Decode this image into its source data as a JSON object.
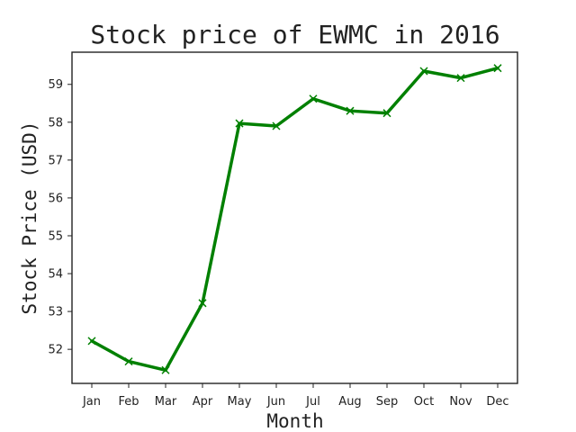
{
  "chart_data": {
    "type": "line",
    "title": "Stock price of EWMC in 2016",
    "xlabel": "Month",
    "ylabel": "Stock Price (USD)",
    "categories": [
      "Jan",
      "Feb",
      "Mar",
      "Apr",
      "May",
      "Jun",
      "Jul",
      "Aug",
      "Sep",
      "Oct",
      "Nov",
      "Dec"
    ],
    "series": [
      {
        "values": [
          52.22,
          51.68,
          51.45,
          53.22,
          57.97,
          57.9,
          58.62,
          58.3,
          58.24,
          59.35,
          59.17,
          59.43
        ]
      }
    ],
    "ylim": [
      51.1,
      59.85
    ],
    "yticks": [
      52,
      53,
      54,
      55,
      56,
      57,
      58,
      59
    ],
    "grid": false,
    "legend": "none",
    "line_color": "#008000",
    "marker": "x"
  }
}
